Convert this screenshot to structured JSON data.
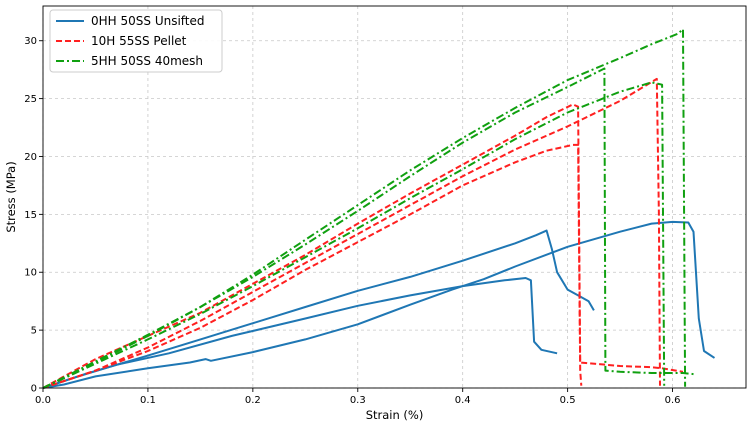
{
  "chart_data": {
    "type": "line",
    "title": "",
    "xlabel": "Strain (%)",
    "ylabel": "Stress (MPa)",
    "xlim": [
      0.0,
      0.67
    ],
    "ylim": [
      0,
      33
    ],
    "x_ticks": [
      0.0,
      0.1,
      0.2,
      0.3,
      0.4,
      0.5,
      0.6
    ],
    "x_tick_labels": [
      "0.0",
      "0.1",
      "0.2",
      "0.3",
      "0.4",
      "0.5",
      "0.6"
    ],
    "y_ticks": [
      0,
      5,
      10,
      15,
      20,
      25,
      30
    ],
    "y_tick_labels": [
      "0",
      "5",
      "10",
      "15",
      "20",
      "25",
      "30"
    ],
    "grid": true,
    "grid_style": "dashed",
    "legend_position": "top-left",
    "legend": [
      {
        "label": "0HH 50SS Unsifted",
        "color": "#1f77b4",
        "dash": "solid"
      },
      {
        "label": "10H 55SS Pellet",
        "color": "#ff2020",
        "dash": "dashed"
      },
      {
        "label": "5HH 50SS 40mesh",
        "color": "#10a010",
        "dash": "dashdot"
      }
    ],
    "series": [
      {
        "group": "0HH 50SS Unsifted",
        "color": "#1f77b4",
        "dash": "solid",
        "points": [
          [
            0,
            0
          ],
          [
            0.02,
            0.3
          ],
          [
            0.05,
            1.0
          ],
          [
            0.1,
            1.7
          ],
          [
            0.14,
            2.2
          ],
          [
            0.155,
            2.5
          ],
          [
            0.16,
            2.35
          ],
          [
            0.2,
            3.1
          ],
          [
            0.25,
            4.2
          ],
          [
            0.3,
            5.5
          ],
          [
            0.35,
            7.2
          ],
          [
            0.39,
            8.5
          ],
          [
            0.42,
            9.4
          ],
          [
            0.45,
            10.5
          ],
          [
            0.5,
            12.2
          ],
          [
            0.55,
            13.5
          ],
          [
            0.58,
            14.2
          ],
          [
            0.6,
            14.35
          ],
          [
            0.615,
            14.3
          ],
          [
            0.62,
            13.5
          ],
          [
            0.625,
            6.0
          ],
          [
            0.63,
            3.2
          ],
          [
            0.64,
            2.6
          ]
        ]
      },
      {
        "group": "0HH 50SS Unsifted",
        "color": "#1f77b4",
        "dash": "solid",
        "points": [
          [
            0,
            0
          ],
          [
            0.03,
            0.9
          ],
          [
            0.07,
            2.0
          ],
          [
            0.12,
            3.0
          ],
          [
            0.18,
            4.5
          ],
          [
            0.25,
            6.0
          ],
          [
            0.3,
            7.1
          ],
          [
            0.35,
            8.0
          ],
          [
            0.4,
            8.8
          ],
          [
            0.44,
            9.3
          ],
          [
            0.46,
            9.5
          ],
          [
            0.465,
            9.3
          ],
          [
            0.468,
            4.0
          ],
          [
            0.475,
            3.3
          ],
          [
            0.49,
            3.0
          ]
        ]
      },
      {
        "group": "0HH 50SS Unsifted",
        "color": "#1f77b4",
        "dash": "solid",
        "points": [
          [
            0,
            0
          ],
          [
            0.04,
            1.2
          ],
          [
            0.1,
            2.8
          ],
          [
            0.15,
            4.2
          ],
          [
            0.2,
            5.6
          ],
          [
            0.25,
            7.0
          ],
          [
            0.3,
            8.4
          ],
          [
            0.35,
            9.6
          ],
          [
            0.4,
            11.0
          ],
          [
            0.45,
            12.5
          ],
          [
            0.47,
            13.2
          ],
          [
            0.48,
            13.6
          ],
          [
            0.485,
            12.0
          ],
          [
            0.49,
            10.0
          ],
          [
            0.5,
            8.5
          ],
          [
            0.51,
            8.0
          ],
          [
            0.52,
            7.5
          ],
          [
            0.525,
            6.7
          ]
        ]
      },
      {
        "group": "10H 55SS Pellet",
        "color": "#ff2020",
        "dash": "dashed",
        "points": [
          [
            0,
            0
          ],
          [
            0.05,
            1.5
          ],
          [
            0.1,
            3.2
          ],
          [
            0.15,
            5.2
          ],
          [
            0.2,
            7.6
          ],
          [
            0.25,
            10.2
          ],
          [
            0.3,
            12.6
          ],
          [
            0.35,
            15.0
          ],
          [
            0.4,
            17.5
          ],
          [
            0.45,
            19.5
          ],
          [
            0.48,
            20.5
          ],
          [
            0.505,
            21.0
          ],
          [
            0.51,
            21.0
          ],
          [
            0.512,
            1.5
          ],
          [
            0.513,
            0.2
          ]
        ]
      },
      {
        "group": "10H 55SS Pellet",
        "color": "#ff2020",
        "dash": "dashed",
        "points": [
          [
            0,
            0
          ],
          [
            0.05,
            2.5
          ],
          [
            0.1,
            4.5
          ],
          [
            0.15,
            6.5
          ],
          [
            0.2,
            9.0
          ],
          [
            0.25,
            11.5
          ],
          [
            0.3,
            14.2
          ],
          [
            0.35,
            16.8
          ],
          [
            0.4,
            19.3
          ],
          [
            0.45,
            21.8
          ],
          [
            0.48,
            23.4
          ],
          [
            0.505,
            24.5
          ],
          [
            0.51,
            24.3
          ],
          [
            0.512,
            2.2
          ],
          [
            0.55,
            1.9
          ],
          [
            0.58,
            1.8
          ],
          [
            0.59,
            1.7
          ],
          [
            0.61,
            1.4
          ]
        ]
      },
      {
        "group": "10H 55SS Pellet",
        "color": "#ff2020",
        "dash": "dashed",
        "points": [
          [
            0,
            0
          ],
          [
            0.05,
            1.5
          ],
          [
            0.1,
            3.5
          ],
          [
            0.15,
            5.8
          ],
          [
            0.2,
            8.3
          ],
          [
            0.25,
            10.8
          ],
          [
            0.3,
            13.3
          ],
          [
            0.35,
            15.8
          ],
          [
            0.4,
            18.3
          ],
          [
            0.45,
            20.6
          ],
          [
            0.5,
            22.6
          ],
          [
            0.55,
            24.8
          ],
          [
            0.585,
            26.7
          ],
          [
            0.587,
            15.0
          ],
          [
            0.588,
            0.2
          ]
        ]
      },
      {
        "group": "5HH 50SS 40mesh",
        "color": "#10a010",
        "dash": "dashdot",
        "points": [
          [
            0,
            0
          ],
          [
            0.05,
            2.1
          ],
          [
            0.1,
            4.2
          ],
          [
            0.15,
            6.4
          ],
          [
            0.2,
            8.8
          ],
          [
            0.25,
            11.3
          ],
          [
            0.3,
            13.8
          ],
          [
            0.35,
            16.4
          ],
          [
            0.4,
            18.9
          ],
          [
            0.45,
            21.5
          ],
          [
            0.5,
            23.8
          ],
          [
            0.55,
            25.6
          ],
          [
            0.58,
            26.4
          ],
          [
            0.59,
            26.2
          ],
          [
            0.592,
            0.2
          ]
        ]
      },
      {
        "group": "5HH 50SS 40mesh",
        "color": "#10a010",
        "dash": "dashdot",
        "points": [
          [
            0,
            0
          ],
          [
            0.05,
            2.3
          ],
          [
            0.1,
            4.6
          ],
          [
            0.15,
            7.0
          ],
          [
            0.2,
            9.6
          ],
          [
            0.25,
            12.4
          ],
          [
            0.3,
            15.3
          ],
          [
            0.35,
            18.3
          ],
          [
            0.4,
            21.2
          ],
          [
            0.45,
            23.8
          ],
          [
            0.5,
            26.0
          ],
          [
            0.535,
            27.6
          ],
          [
            0.536,
            1.5
          ],
          [
            0.55,
            1.4
          ],
          [
            0.58,
            1.3
          ],
          [
            0.6,
            1.3
          ],
          [
            0.61,
            1.3
          ],
          [
            0.62,
            1.2
          ]
        ]
      },
      {
        "group": "5HH 50SS 40mesh",
        "color": "#10a010",
        "dash": "dashdot",
        "points": [
          [
            0,
            0
          ],
          [
            0.05,
            2.2
          ],
          [
            0.1,
            4.5
          ],
          [
            0.15,
            7.0
          ],
          [
            0.2,
            9.8
          ],
          [
            0.25,
            12.8
          ],
          [
            0.3,
            15.8
          ],
          [
            0.35,
            18.8
          ],
          [
            0.4,
            21.6
          ],
          [
            0.45,
            24.2
          ],
          [
            0.5,
            26.6
          ],
          [
            0.55,
            28.5
          ],
          [
            0.58,
            29.7
          ],
          [
            0.605,
            30.6
          ],
          [
            0.61,
            31.0
          ],
          [
            0.612,
            0.1
          ]
        ]
      }
    ]
  }
}
